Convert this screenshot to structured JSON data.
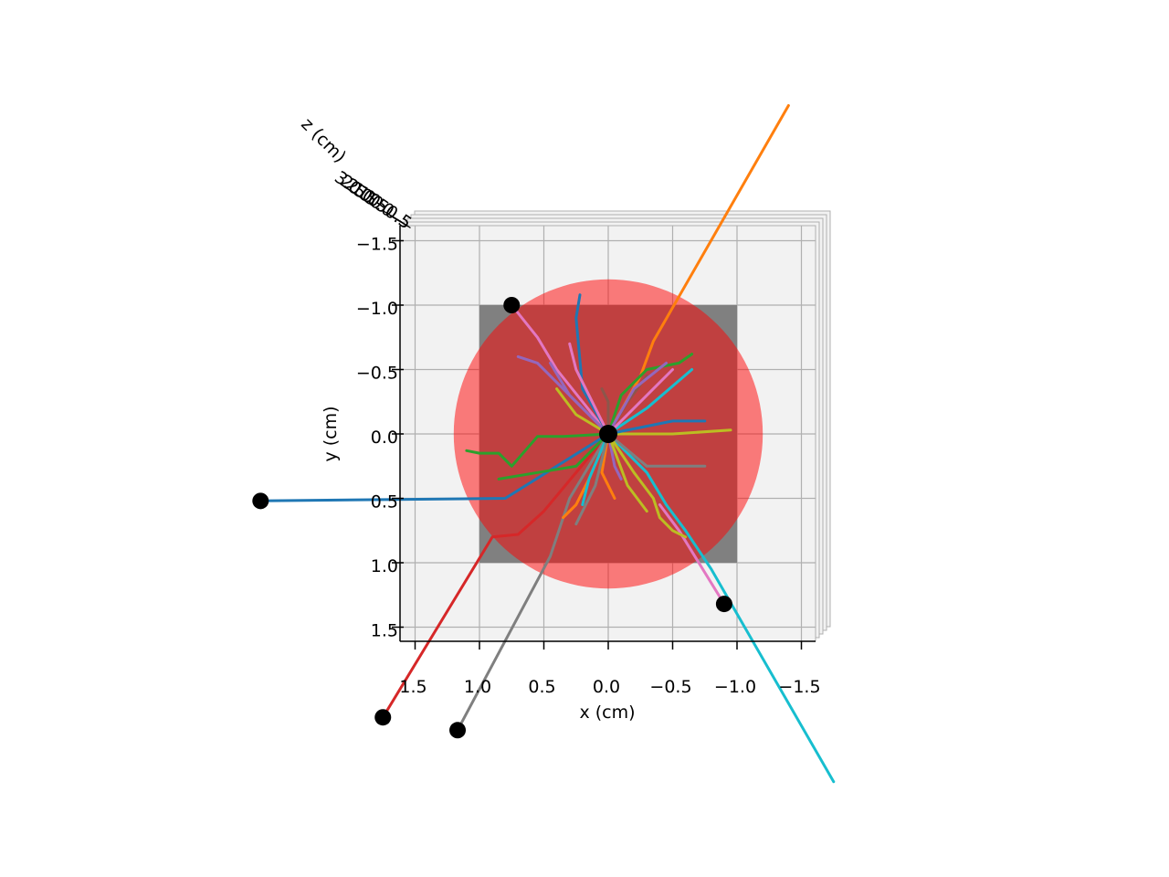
{
  "chart_data": {
    "type": "scatter",
    "projection": "3d-top-view",
    "xlabel": "x (cm)",
    "ylabel": "y (cm)",
    "zlabel": "z (cm)",
    "x_ticks": [
      "1.5",
      "1.0",
      "0.5",
      "0.0",
      "−0.5",
      "−1.0",
      "−1.5"
    ],
    "y_ticks": [
      "−1.5",
      "−1.0",
      "−0.5",
      "0.0",
      "0.5",
      "1.0",
      "1.5"
    ],
    "z_ticks": [
      "3.0",
      "2.5",
      "2.0",
      "1.5",
      "1.0",
      "0.5",
      "0.0",
      "−0.5"
    ],
    "xlim": [
      1.5,
      -1.5
    ],
    "ylim": [
      -1.5,
      1.5
    ],
    "grid": true,
    "detector": {
      "square": {
        "x": [
          -1.0,
          1.0
        ],
        "y": [
          -1.0,
          1.0
        ],
        "color": "#808080"
      },
      "circle": {
        "center": [
          0,
          0
        ],
        "radius": 1.2,
        "color": "#ff0000",
        "alpha": 0.5
      }
    },
    "endpoint_color": "#000000",
    "tracks": [
      {
        "color": "#1f77b4",
        "points": [
          [
            0,
            0
          ],
          [
            0.8,
            0.5
          ],
          [
            2.7,
            0.52
          ]
        ],
        "endpoint": true
      },
      {
        "color": "#ff7f0e",
        "points": [
          [
            0,
            0
          ],
          [
            -0.25,
            -0.45
          ],
          [
            -0.35,
            -0.72
          ],
          [
            -1.4,
            -2.55
          ]
        ],
        "endpoint": false
      },
      {
        "color": "#d62728",
        "points": [
          [
            0,
            0
          ],
          [
            0.5,
            0.6
          ],
          [
            0.7,
            0.78
          ],
          [
            0.9,
            0.8
          ],
          [
            1.75,
            2.2
          ]
        ],
        "endpoint": true
      },
      {
        "color": "#7f7f7f",
        "points": [
          [
            0,
            0
          ],
          [
            0.3,
            0.5
          ],
          [
            0.4,
            0.8
          ],
          [
            0.45,
            0.95
          ],
          [
            1.17,
            2.3
          ]
        ],
        "endpoint": true
      },
      {
        "color": "#17becf",
        "points": [
          [
            0,
            0
          ],
          [
            -0.3,
            0.3
          ],
          [
            -0.45,
            0.55
          ],
          [
            -0.6,
            0.75
          ],
          [
            -0.8,
            1.05
          ],
          [
            -1.75,
            2.7
          ]
        ],
        "endpoint": false
      },
      {
        "color": "#e377c2",
        "points": [
          [
            0,
            0
          ],
          [
            0.4,
            -0.5
          ],
          [
            0.55,
            -0.75
          ],
          [
            0.75,
            -1.0
          ]
        ],
        "endpoint": true
      },
      {
        "color": "#e377c2",
        "points": [
          [
            -0.4,
            0.55
          ],
          [
            -0.55,
            0.75
          ],
          [
            -0.9,
            1.32
          ]
        ],
        "endpoint": true
      },
      {
        "color": "#2ca02c",
        "points": [
          [
            0,
            0
          ],
          [
            0.35,
            0.02
          ],
          [
            0.55,
            0.02
          ],
          [
            0.75,
            0.25
          ],
          [
            0.85,
            0.15
          ],
          [
            1.0,
            0.15
          ],
          [
            1.1,
            0.13
          ]
        ],
        "endpoint": false
      },
      {
        "color": "#2ca02c",
        "points": [
          [
            0,
            0
          ],
          [
            0.1,
            0.1
          ],
          [
            0.25,
            0.25
          ],
          [
            0.55,
            0.3
          ],
          [
            0.85,
            0.35
          ]
        ],
        "endpoint": false
      },
      {
        "color": "#bcbd22",
        "points": [
          [
            0,
            0
          ],
          [
            -0.5,
            0
          ],
          [
            -0.95,
            -0.03
          ]
        ],
        "endpoint": false
      },
      {
        "color": "#bcbd22",
        "points": [
          [
            0,
            0
          ],
          [
            -0.2,
            0.3
          ],
          [
            -0.35,
            0.5
          ],
          [
            -0.4,
            0.65
          ],
          [
            -0.5,
            0.75
          ],
          [
            -0.6,
            0.8
          ]
        ],
        "endpoint": false
      },
      {
        "color": "#9467bd",
        "points": [
          [
            0,
            0
          ],
          [
            0.4,
            -0.4
          ],
          [
            0.55,
            -0.55
          ],
          [
            0.7,
            -0.6
          ]
        ],
        "endpoint": false
      },
      {
        "color": "#1f77b4",
        "points": [
          [
            0,
            0
          ],
          [
            0.2,
            -0.35
          ],
          [
            0.25,
            -0.9
          ],
          [
            0.22,
            -1.08
          ]
        ],
        "endpoint": false
      },
      {
        "color": "#8c564b",
        "points": [
          [
            0,
            0
          ],
          [
            -0.15,
            -0.25
          ],
          [
            -0.3,
            -0.45
          ]
        ],
        "endpoint": false
      },
      {
        "color": "#17becf",
        "points": [
          [
            0,
            0
          ],
          [
            -0.3,
            -0.2
          ],
          [
            -0.65,
            -0.5
          ]
        ],
        "endpoint": false
      },
      {
        "color": "#1f77b4",
        "points": [
          [
            0,
            0
          ],
          [
            -0.5,
            -0.1
          ],
          [
            -0.75,
            -0.1
          ]
        ],
        "endpoint": false
      },
      {
        "color": "#7f7f7f",
        "points": [
          [
            0,
            0
          ],
          [
            -0.3,
            0.25
          ],
          [
            -0.55,
            0.25
          ],
          [
            -0.75,
            0.25
          ]
        ],
        "endpoint": false
      },
      {
        "color": "#bcbd22",
        "points": [
          [
            0,
            0
          ],
          [
            0.25,
            -0.15
          ],
          [
            0.4,
            -0.35
          ]
        ],
        "endpoint": false
      },
      {
        "color": "#e377c2",
        "points": [
          [
            0,
            0
          ],
          [
            0.15,
            -0.3
          ],
          [
            0.25,
            -0.5
          ],
          [
            0.3,
            -0.7
          ]
        ],
        "endpoint": false
      },
      {
        "color": "#ff7f0e",
        "points": [
          [
            0,
            0
          ],
          [
            0.15,
            0.35
          ],
          [
            0.25,
            0.55
          ],
          [
            0.35,
            0.65
          ]
        ],
        "endpoint": false
      },
      {
        "color": "#9467bd",
        "points": [
          [
            0,
            0
          ],
          [
            0.3,
            -0.3
          ],
          [
            0.45,
            -0.55
          ]
        ],
        "endpoint": false
      },
      {
        "color": "#17becf",
        "points": [
          [
            0,
            0
          ],
          [
            0.15,
            0.35
          ],
          [
            0.2,
            0.55
          ]
        ],
        "endpoint": false
      },
      {
        "color": "#2ca02c",
        "points": [
          [
            0,
            0
          ],
          [
            -0.1,
            -0.3
          ],
          [
            -0.3,
            -0.5
          ],
          [
            -0.55,
            -0.55
          ],
          [
            -0.65,
            -0.62
          ]
        ],
        "endpoint": false
      },
      {
        "color": "#9467bd",
        "points": [
          [
            0,
            0
          ],
          [
            -0.2,
            -0.35
          ],
          [
            -0.45,
            -0.55
          ]
        ],
        "endpoint": false
      },
      {
        "color": "#e377c2",
        "points": [
          [
            0,
            0
          ],
          [
            -0.35,
            -0.35
          ],
          [
            -0.5,
            -0.5
          ]
        ],
        "endpoint": false
      },
      {
        "color": "#8c564b",
        "points": [
          [
            0,
            0
          ],
          [
            0.0,
            -0.25
          ],
          [
            0.05,
            -0.35
          ]
        ],
        "endpoint": false
      },
      {
        "color": "#ff7f0e",
        "points": [
          [
            0,
            0
          ],
          [
            0.05,
            0.3
          ],
          [
            -0.05,
            0.5
          ]
        ],
        "endpoint": false
      },
      {
        "color": "#9467bd",
        "points": [
          [
            0,
            0
          ],
          [
            -0.05,
            0.25
          ],
          [
            -0.1,
            0.35
          ]
        ],
        "endpoint": false
      },
      {
        "color": "#7f7f7f",
        "points": [
          [
            0,
            0
          ],
          [
            0.1,
            0.4
          ],
          [
            0.25,
            0.7
          ]
        ],
        "endpoint": false
      },
      {
        "color": "#bcbd22",
        "points": [
          [
            0,
            0
          ],
          [
            -0.15,
            0.4
          ],
          [
            -0.3,
            0.6
          ]
        ],
        "endpoint": false
      }
    ],
    "origin": {
      "x": 0,
      "y": 0
    }
  }
}
